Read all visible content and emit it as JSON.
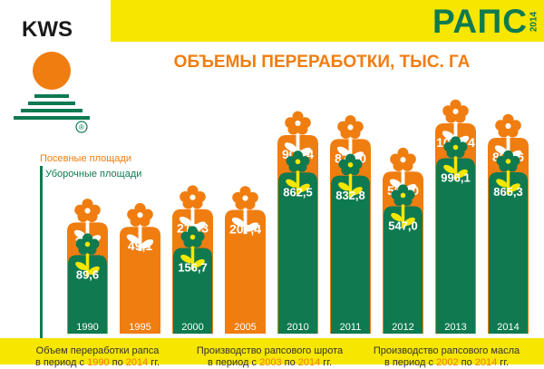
{
  "header": {
    "title": "РАПС",
    "year": "2014"
  },
  "brand": {
    "name": "KWS",
    "registered": "®"
  },
  "colors": {
    "orange": "#f07d10",
    "green": "#0f7a50",
    "yellow": "#f6e600"
  },
  "chart_data": {
    "type": "bar",
    "title": "ОБЪЕМЫ ПЕРЕРАБОТКИ, ТЫС. ГА",
    "categories": [
      "1990",
      "1995",
      "2000",
      "2005",
      "2010",
      "2011",
      "2012",
      "2013",
      "2014"
    ],
    "series": [
      {
        "name": "Посевные площади",
        "color": "#f07d10",
        "values": [
          89.7,
          49.1,
          214.3,
          207.4,
          907.4,
          870.0,
          566.0,
          1017.4,
          881.6
        ],
        "labels": [
          "89,7",
          "49,1",
          "214,3",
          "207,4",
          "907,4",
          "870,0",
          "566,0",
          "1017,4",
          "881,6"
        ]
      },
      {
        "name": "Уборочные площади",
        "color": "#0f7a50",
        "values": [
          89.6,
          null,
          156.7,
          null,
          862.5,
          832.8,
          547.0,
          996.1,
          865.3
        ],
        "labels": [
          "89,6",
          "",
          "156,7",
          "",
          "862,5",
          "832,8",
          "547,0",
          "996,1",
          "865,3"
        ]
      }
    ],
    "legend_position": "left",
    "grid": false,
    "icons": [
      "rapeseed-flower-icon"
    ]
  },
  "footer": [
    {
      "prefix": "Объем переработки рапса",
      "mid": "в период с ",
      "from": "1990",
      "sep": " по ",
      "to": "2014",
      "suffix": " гг."
    },
    {
      "prefix": "Производство рапсового шрота",
      "mid": "в период с ",
      "from": "2003",
      "sep": " по ",
      "to": "2014",
      "suffix": " гг."
    },
    {
      "prefix": "Производство рапсового масла",
      "mid": "в период с ",
      "from": "2002",
      "sep": " по ",
      "to": "2014",
      "suffix": " гг."
    }
  ]
}
